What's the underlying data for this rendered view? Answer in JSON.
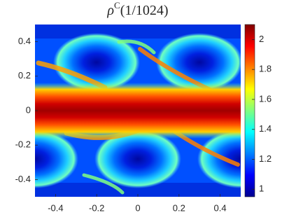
{
  "chart_data": {
    "type": "heatmap",
    "title": {
      "symbol": "ρ",
      "superscript": "C",
      "argument": "(1/1024)"
    },
    "xlim": [
      -0.5,
      0.5
    ],
    "ylim": [
      -0.5,
      0.5
    ],
    "xticks": [
      -0.4,
      -0.2,
      0,
      0.2,
      0.4
    ],
    "yticks": [
      -0.4,
      -0.2,
      0,
      0.2,
      0.4
    ],
    "colormap": "jet",
    "clim": [
      0.95,
      2.1
    ],
    "colorbar_ticks": [
      1,
      1.2,
      1.4,
      1.6,
      1.8,
      2
    ]
  }
}
